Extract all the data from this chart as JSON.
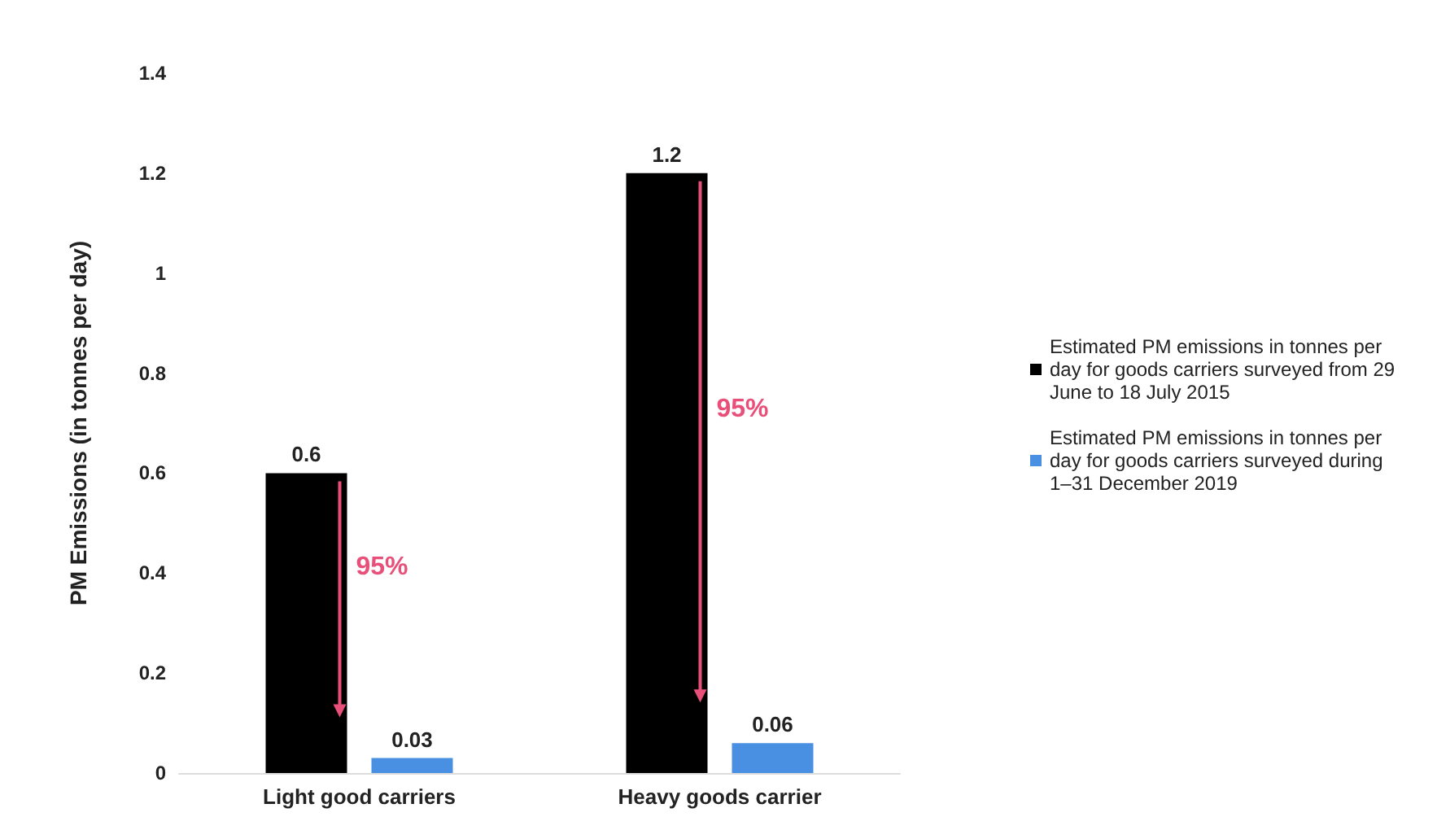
{
  "chart_data": {
    "type": "bar",
    "ylabel": "PM Emissions (in tonnes per day)",
    "categories": [
      "Light good carriers",
      "Heavy goods carrier"
    ],
    "series": [
      {
        "name": "Estimated PM emissions in tonnes per day for goods carriers surveyed from 29 June to 18 July 2015",
        "color": "#000000",
        "values": [
          0.6,
          1.2
        ]
      },
      {
        "name": "Estimated PM emissions in tonnes per day for goods carriers surveyed during 1–31 December 2019",
        "color": "#4a90e2",
        "values": [
          0.03,
          0.06
        ]
      }
    ],
    "ylim": [
      0,
      1.4
    ],
    "yticks": [
      0,
      0.2,
      0.4,
      0.6,
      0.8,
      1,
      1.2,
      1.4
    ],
    "grid": false,
    "legend": "right",
    "data_labels": true,
    "annotations": [
      "95%",
      "95%"
    ]
  }
}
